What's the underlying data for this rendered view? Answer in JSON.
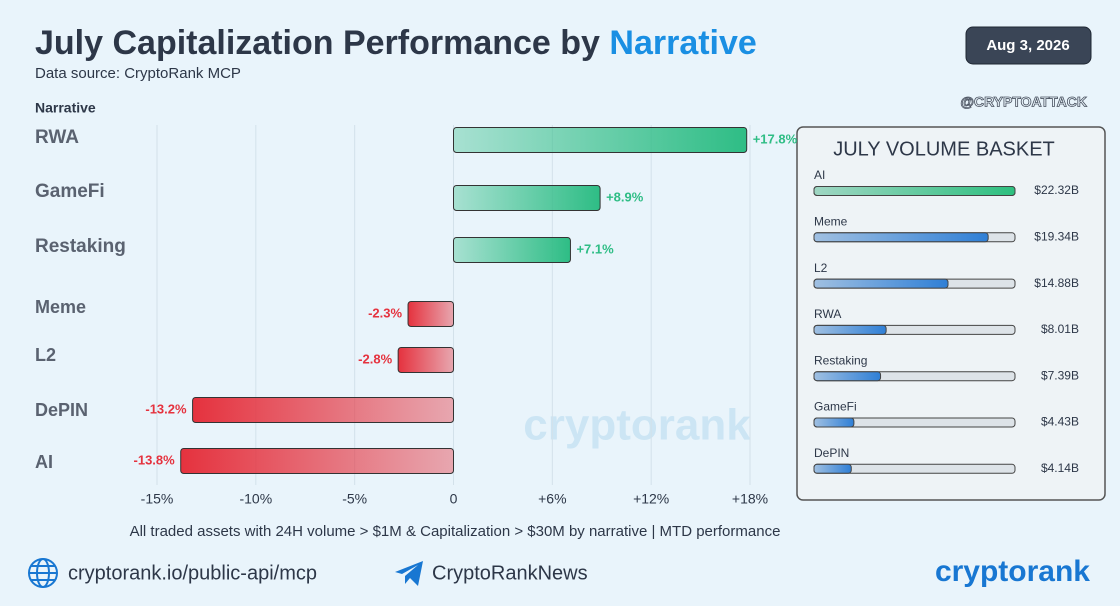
{
  "header": {
    "title": "July Capitalization Performance by",
    "title_highlight": "Narrative",
    "subtitle": "Data source: CryptoRank MCP",
    "date": "Aug 3, 2026",
    "handle": "@CRYPTOATTACK"
  },
  "watermark": "cryptorank",
  "footer": {
    "url": "cryptorank.io/public-api/mcp",
    "telegram": "CryptoRankNews",
    "logo": "cryptorank"
  },
  "chart_data": [
    {
      "type": "hbar",
      "y_label": "Narrative",
      "categories": [
        "RWA",
        "GameFi",
        "Restaking",
        "Meme",
        "L2",
        "DePIN",
        "AI"
      ],
      "values": [
        17.8,
        8.9,
        7.1,
        -2.3,
        -2.8,
        -13.2,
        -13.8
      ],
      "value_labels": [
        "+17.8%",
        "+8.9%",
        "+7.1%",
        "-2.3%",
        "-2.8%",
        "-13.2%",
        "-13.8%"
      ],
      "positive_color": "#2ebd85",
      "negative_color": "#e5323e",
      "xlim": [
        -15,
        18
      ],
      "xticks": [
        {
          "value": -15,
          "label": "-15%"
        },
        {
          "value": -10,
          "label": "-10%"
        },
        {
          "value": -5,
          "label": "-5%"
        },
        0,
        {
          "value": 6,
          "label": "+6%"
        },
        {
          "value": 12,
          "label": "+12%"
        },
        {
          "value": 18,
          "label": "+18%"
        }
      ],
      "grid": true,
      "note": "All traded assets with 24H volume > $1M & Capitalization > $30M by narrative | MTD performance"
    },
    {
      "type": "basket",
      "title": "JULY VOLUME BASKET",
      "categories": [
        "AI",
        "Meme",
        "L2",
        "RWA",
        "Restaking",
        "GameFi",
        "DePIN"
      ],
      "values": [
        22.32,
        19.34,
        14.88,
        8.01,
        7.39,
        4.43,
        4.14
      ],
      "value_labels": [
        "$22.32B",
        "$19.34B",
        "$14.88B",
        "$8.01B",
        "$7.39B",
        "$4.43B",
        "$4.14B"
      ],
      "colors": [
        "#2dbf7f",
        "#2f7fd6",
        "#2f7fd6",
        "#2f7fd6",
        "#2f7fd6",
        "#2f7fd6",
        "#2f7fd6"
      ],
      "xlim": [
        0,
        22.32
      ]
    }
  ]
}
